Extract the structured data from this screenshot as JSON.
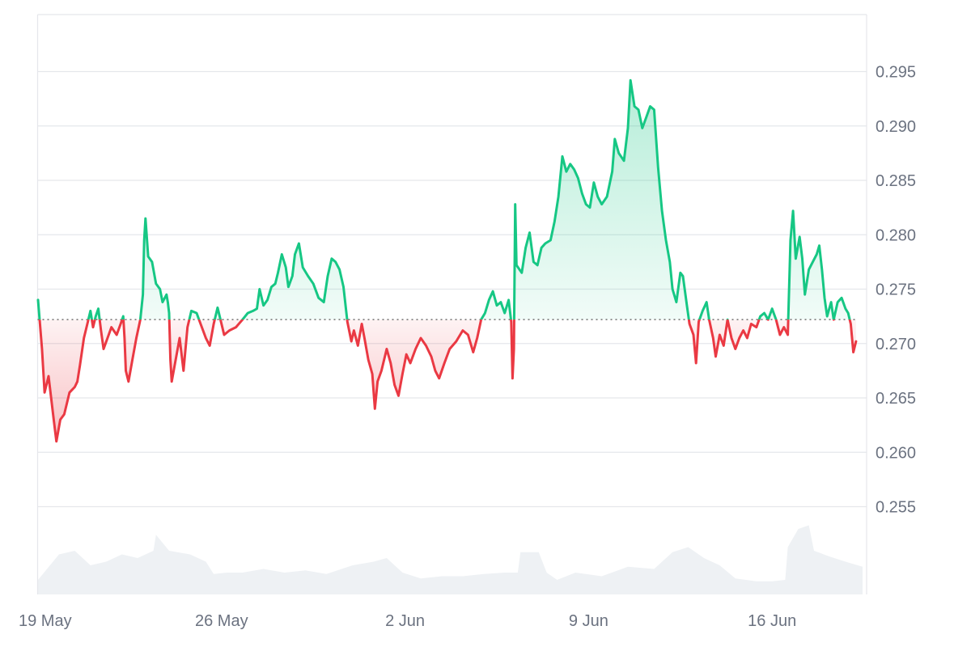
{
  "chart_data": {
    "type": "area",
    "baseline": 0.2722,
    "ylim": [
      0.25,
      0.3
    ],
    "grid": true,
    "y_ticks": [
      "0.295",
      "0.290",
      "0.285",
      "0.280",
      "0.275",
      "0.270",
      "0.265",
      "0.260",
      "0.255"
    ],
    "x_ticks": [
      {
        "label": "19 May",
        "day": 0
      },
      {
        "label": "26 May",
        "day": 7
      },
      {
        "label": "2 Jun",
        "day": 14
      },
      {
        "label": "9 Jun",
        "day": 21
      },
      {
        "label": "16 Jun",
        "day": 28
      }
    ],
    "xlim_days": [
      0,
      31.45
    ],
    "series": [
      {
        "values": [
          [
            0.0,
            0.274
          ],
          [
            0.15,
            0.2695
          ],
          [
            0.25,
            0.2655
          ],
          [
            0.4,
            0.267
          ],
          [
            0.6,
            0.263
          ],
          [
            0.7,
            0.261
          ],
          [
            0.85,
            0.263
          ],
          [
            1.0,
            0.2635
          ],
          [
            1.2,
            0.2655
          ],
          [
            1.4,
            0.266
          ],
          [
            1.5,
            0.2665
          ],
          [
            1.6,
            0.268
          ],
          [
            1.75,
            0.2705
          ],
          [
            1.9,
            0.272
          ],
          [
            2.0,
            0.273
          ],
          [
            2.1,
            0.2715
          ],
          [
            2.2,
            0.2725
          ],
          [
            2.3,
            0.2732
          ],
          [
            2.4,
            0.2712
          ],
          [
            2.5,
            0.2695
          ],
          [
            2.65,
            0.2705
          ],
          [
            2.8,
            0.2715
          ],
          [
            3.0,
            0.2708
          ],
          [
            3.15,
            0.2718
          ],
          [
            3.25,
            0.2725
          ],
          [
            3.3,
            0.2705
          ],
          [
            3.35,
            0.2675
          ],
          [
            3.45,
            0.2665
          ],
          [
            3.6,
            0.2685
          ],
          [
            3.75,
            0.2705
          ],
          [
            3.9,
            0.2722
          ],
          [
            4.0,
            0.2745
          ],
          [
            4.05,
            0.2795
          ],
          [
            4.1,
            0.2815
          ],
          [
            4.2,
            0.278
          ],
          [
            4.35,
            0.2775
          ],
          [
            4.5,
            0.2755
          ],
          [
            4.65,
            0.275
          ],
          [
            4.75,
            0.2738
          ],
          [
            4.9,
            0.2745
          ],
          [
            4.95,
            0.2738
          ],
          [
            5.0,
            0.2728
          ],
          [
            5.05,
            0.2685
          ],
          [
            5.1,
            0.2665
          ],
          [
            5.25,
            0.2685
          ],
          [
            5.4,
            0.2705
          ],
          [
            5.55,
            0.2675
          ],
          [
            5.7,
            0.2715
          ],
          [
            5.85,
            0.273
          ],
          [
            6.05,
            0.2728
          ],
          [
            6.2,
            0.2718
          ],
          [
            6.4,
            0.2705
          ],
          [
            6.55,
            0.2698
          ],
          [
            6.7,
            0.2718
          ],
          [
            6.85,
            0.2733
          ],
          [
            7.1,
            0.2708
          ],
          [
            7.3,
            0.2712
          ],
          [
            7.55,
            0.2715
          ],
          [
            7.8,
            0.2722
          ],
          [
            8.0,
            0.2728
          ],
          [
            8.2,
            0.273
          ],
          [
            8.35,
            0.2732
          ],
          [
            8.45,
            0.275
          ],
          [
            8.6,
            0.2735
          ],
          [
            8.75,
            0.274
          ],
          [
            8.9,
            0.2752
          ],
          [
            9.05,
            0.2755
          ],
          [
            9.15,
            0.2765
          ],
          [
            9.3,
            0.2782
          ],
          [
            9.45,
            0.277
          ],
          [
            9.55,
            0.2752
          ],
          [
            9.7,
            0.2762
          ],
          [
            9.8,
            0.2782
          ],
          [
            9.95,
            0.2792
          ],
          [
            10.1,
            0.277
          ],
          [
            10.3,
            0.2762
          ],
          [
            10.5,
            0.2755
          ],
          [
            10.7,
            0.2742
          ],
          [
            10.9,
            0.2738
          ],
          [
            11.05,
            0.2762
          ],
          [
            11.2,
            0.2778
          ],
          [
            11.35,
            0.2775
          ],
          [
            11.5,
            0.2768
          ],
          [
            11.65,
            0.2752
          ],
          [
            11.8,
            0.272
          ],
          [
            11.95,
            0.2702
          ],
          [
            12.05,
            0.2712
          ],
          [
            12.2,
            0.2698
          ],
          [
            12.35,
            0.2718
          ],
          [
            12.45,
            0.2705
          ],
          [
            12.6,
            0.2685
          ],
          [
            12.75,
            0.2672
          ],
          [
            12.85,
            0.264
          ],
          [
            12.95,
            0.2665
          ],
          [
            13.1,
            0.2675
          ],
          [
            13.3,
            0.2695
          ],
          [
            13.45,
            0.2682
          ],
          [
            13.6,
            0.2662
          ],
          [
            13.75,
            0.2652
          ],
          [
            13.9,
            0.2672
          ],
          [
            14.05,
            0.269
          ],
          [
            14.2,
            0.2682
          ],
          [
            14.4,
            0.2695
          ],
          [
            14.6,
            0.2705
          ],
          [
            14.8,
            0.2698
          ],
          [
            15.0,
            0.2688
          ],
          [
            15.15,
            0.2675
          ],
          [
            15.3,
            0.2668
          ],
          [
            15.5,
            0.2682
          ],
          [
            15.7,
            0.2695
          ],
          [
            15.95,
            0.2702
          ],
          [
            16.2,
            0.2712
          ],
          [
            16.4,
            0.2708
          ],
          [
            16.6,
            0.2692
          ],
          [
            16.75,
            0.2705
          ],
          [
            16.9,
            0.2722
          ],
          [
            17.05,
            0.2728
          ],
          [
            17.2,
            0.274
          ],
          [
            17.35,
            0.2748
          ],
          [
            17.5,
            0.2735
          ],
          [
            17.65,
            0.2738
          ],
          [
            17.8,
            0.2728
          ],
          [
            17.95,
            0.274
          ],
          [
            18.05,
            0.272
          ],
          [
            18.1,
            0.2668
          ],
          [
            18.15,
            0.2695
          ],
          [
            18.2,
            0.2828
          ],
          [
            18.25,
            0.2772
          ],
          [
            18.45,
            0.2765
          ],
          [
            18.6,
            0.2788
          ],
          [
            18.75,
            0.2802
          ],
          [
            18.9,
            0.2775
          ],
          [
            19.05,
            0.2772
          ],
          [
            19.2,
            0.2788
          ],
          [
            19.35,
            0.2792
          ],
          [
            19.55,
            0.2795
          ],
          [
            19.7,
            0.2812
          ],
          [
            19.85,
            0.2835
          ],
          [
            20.0,
            0.2872
          ],
          [
            20.15,
            0.2858
          ],
          [
            20.3,
            0.2865
          ],
          [
            20.45,
            0.286
          ],
          [
            20.6,
            0.2852
          ],
          [
            20.75,
            0.2838
          ],
          [
            20.9,
            0.2828
          ],
          [
            21.05,
            0.2825
          ],
          [
            21.2,
            0.2848
          ],
          [
            21.35,
            0.2835
          ],
          [
            21.5,
            0.2828
          ],
          [
            21.7,
            0.2835
          ],
          [
            21.9,
            0.2858
          ],
          [
            22.0,
            0.2888
          ],
          [
            22.15,
            0.2875
          ],
          [
            22.35,
            0.2868
          ],
          [
            22.5,
            0.2898
          ],
          [
            22.6,
            0.2942
          ],
          [
            22.75,
            0.2918
          ],
          [
            22.9,
            0.2915
          ],
          [
            23.05,
            0.2898
          ],
          [
            23.2,
            0.2908
          ],
          [
            23.35,
            0.2918
          ],
          [
            23.5,
            0.2915
          ],
          [
            23.65,
            0.2862
          ],
          [
            23.8,
            0.2822
          ],
          [
            23.95,
            0.2795
          ],
          [
            24.1,
            0.2775
          ],
          [
            24.2,
            0.275
          ],
          [
            24.35,
            0.2738
          ],
          [
            24.5,
            0.2765
          ],
          [
            24.6,
            0.2762
          ],
          [
            24.75,
            0.2735
          ],
          [
            24.85,
            0.2718
          ],
          [
            25.0,
            0.2708
          ],
          [
            25.1,
            0.2682
          ],
          [
            25.2,
            0.272
          ],
          [
            25.35,
            0.273
          ],
          [
            25.5,
            0.2738
          ],
          [
            25.6,
            0.2722
          ],
          [
            25.75,
            0.2705
          ],
          [
            25.85,
            0.2688
          ],
          [
            26.0,
            0.2708
          ],
          [
            26.15,
            0.2698
          ],
          [
            26.3,
            0.2722
          ],
          [
            26.45,
            0.2705
          ],
          [
            26.6,
            0.2695
          ],
          [
            26.75,
            0.2705
          ],
          [
            26.9,
            0.2712
          ],
          [
            27.05,
            0.2705
          ],
          [
            27.2,
            0.2718
          ],
          [
            27.4,
            0.2715
          ],
          [
            27.55,
            0.2725
          ],
          [
            27.7,
            0.2728
          ],
          [
            27.85,
            0.2722
          ],
          [
            28.0,
            0.2732
          ],
          [
            28.15,
            0.2722
          ],
          [
            28.3,
            0.2708
          ],
          [
            28.45,
            0.2715
          ],
          [
            28.6,
            0.2708
          ],
          [
            28.7,
            0.2795
          ],
          [
            28.8,
            0.2822
          ],
          [
            28.9,
            0.2778
          ],
          [
            29.05,
            0.2798
          ],
          [
            29.15,
            0.2778
          ],
          [
            29.25,
            0.2745
          ],
          [
            29.4,
            0.2768
          ],
          [
            29.55,
            0.2775
          ],
          [
            29.7,
            0.2782
          ],
          [
            29.8,
            0.279
          ],
          [
            29.9,
            0.2768
          ],
          [
            30.0,
            0.2742
          ],
          [
            30.1,
            0.2725
          ],
          [
            30.25,
            0.2738
          ],
          [
            30.35,
            0.2722
          ],
          [
            30.5,
            0.2738
          ],
          [
            30.65,
            0.2742
          ],
          [
            30.8,
            0.2732
          ],
          [
            30.9,
            0.2728
          ],
          [
            31.0,
            0.2718
          ],
          [
            31.1,
            0.2692
          ],
          [
            31.2,
            0.2702
          ]
        ]
      }
    ],
    "volume": [
      [
        0.0,
        0.2
      ],
      [
        0.8,
        0.55
      ],
      [
        1.4,
        0.6
      ],
      [
        2.0,
        0.4
      ],
      [
        2.6,
        0.45
      ],
      [
        3.2,
        0.55
      ],
      [
        3.8,
        0.5
      ],
      [
        4.4,
        0.6
      ],
      [
        4.5,
        0.82
      ],
      [
        5.0,
        0.6
      ],
      [
        5.8,
        0.55
      ],
      [
        6.4,
        0.45
      ],
      [
        6.7,
        0.28
      ],
      [
        7.2,
        0.3
      ],
      [
        7.8,
        0.3
      ],
      [
        8.6,
        0.35
      ],
      [
        9.4,
        0.3
      ],
      [
        10.2,
        0.33
      ],
      [
        11.0,
        0.28
      ],
      [
        12.0,
        0.4
      ],
      [
        12.8,
        0.45
      ],
      [
        13.3,
        0.5
      ],
      [
        13.9,
        0.3
      ],
      [
        14.6,
        0.22
      ],
      [
        15.4,
        0.25
      ],
      [
        16.2,
        0.25
      ],
      [
        17.0,
        0.28
      ],
      [
        17.8,
        0.3
      ],
      [
        18.3,
        0.3
      ],
      [
        18.4,
        0.58
      ],
      [
        19.1,
        0.58
      ],
      [
        19.4,
        0.3
      ],
      [
        19.8,
        0.2
      ],
      [
        20.5,
        0.3
      ],
      [
        21.5,
        0.25
      ],
      [
        22.5,
        0.38
      ],
      [
        23.5,
        0.35
      ],
      [
        24.2,
        0.58
      ],
      [
        24.8,
        0.65
      ],
      [
        25.4,
        0.5
      ],
      [
        26.0,
        0.4
      ],
      [
        26.6,
        0.22
      ],
      [
        27.4,
        0.18
      ],
      [
        28.0,
        0.18
      ],
      [
        28.5,
        0.2
      ],
      [
        28.6,
        0.65
      ],
      [
        29.0,
        0.9
      ],
      [
        29.4,
        0.95
      ],
      [
        29.6,
        0.6
      ],
      [
        30.2,
        0.52
      ],
      [
        30.8,
        0.45
      ],
      [
        31.45,
        0.38
      ]
    ]
  },
  "colors": {
    "up": "#16c784",
    "down": "#ea3943",
    "grid": "#e5e7eb",
    "volume": "#eef1f4",
    "tick_text": "#6b7280",
    "baseline_dots": "#555555"
  }
}
